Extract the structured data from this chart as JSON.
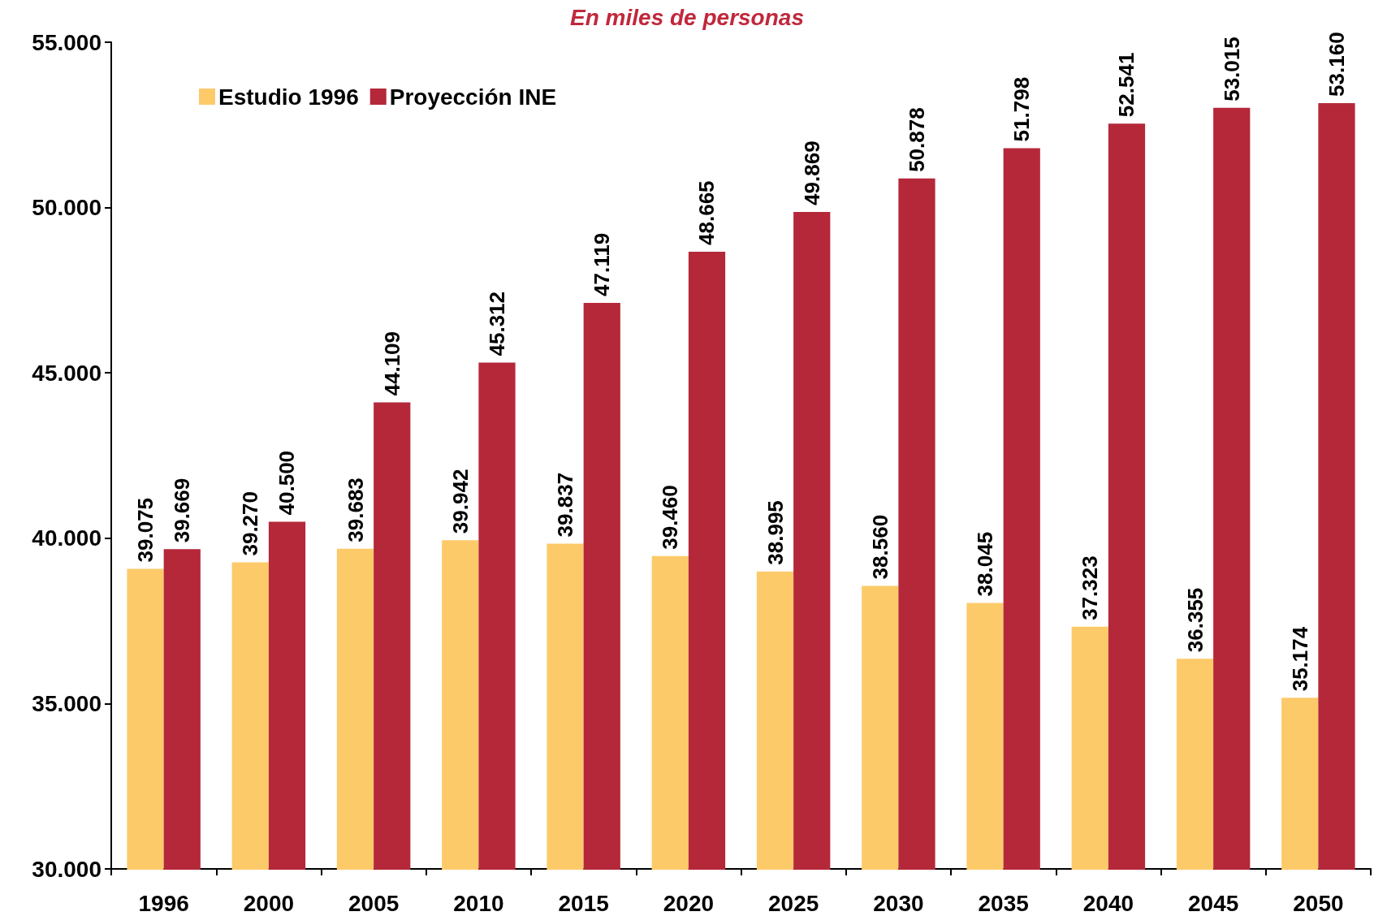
{
  "chart_data": {
    "type": "bar",
    "subtitle": "En miles de personas",
    "categories": [
      "1996",
      "2000",
      "2005",
      "2010",
      "2015",
      "2020",
      "2025",
      "2030",
      "2035",
      "2040",
      "2045",
      "2050"
    ],
    "series": [
      {
        "name": "Estudio 1996",
        "color": "#fdca6a",
        "values": [
          39075,
          39270,
          39683,
          39942,
          39837,
          39460,
          38995,
          38560,
          38045,
          37323,
          36355,
          35174
        ],
        "value_labels": [
          "39.075",
          "39.270",
          "39.683",
          "39.942",
          "39.837",
          "39.460",
          "38.995",
          "38.560",
          "38.045",
          "37.323",
          "36.355",
          "35.174"
        ]
      },
      {
        "name": "Proyección INE",
        "color": "#b5283a",
        "values": [
          39669,
          40500,
          44109,
          45312,
          47119,
          48665,
          49869,
          50878,
          51798,
          52541,
          53015,
          53160
        ],
        "value_labels": [
          "39.669",
          "40.500",
          "44.109",
          "45.312",
          "47.119",
          "48.665",
          "49.869",
          "50.878",
          "51.798",
          "52.541",
          "53.015",
          "53.160"
        ]
      }
    ],
    "ylim": [
      30000,
      55000
    ],
    "yticks": [
      {
        "value": 30000,
        "label": "30.000"
      },
      {
        "value": 35000,
        "label": "35.000"
      },
      {
        "value": 40000,
        "label": "40.000"
      },
      {
        "value": 45000,
        "label": "45.000"
      },
      {
        "value": 50000,
        "label": "50.000"
      },
      {
        "value": 55000,
        "label": "55.000"
      }
    ],
    "legend": "top left"
  }
}
